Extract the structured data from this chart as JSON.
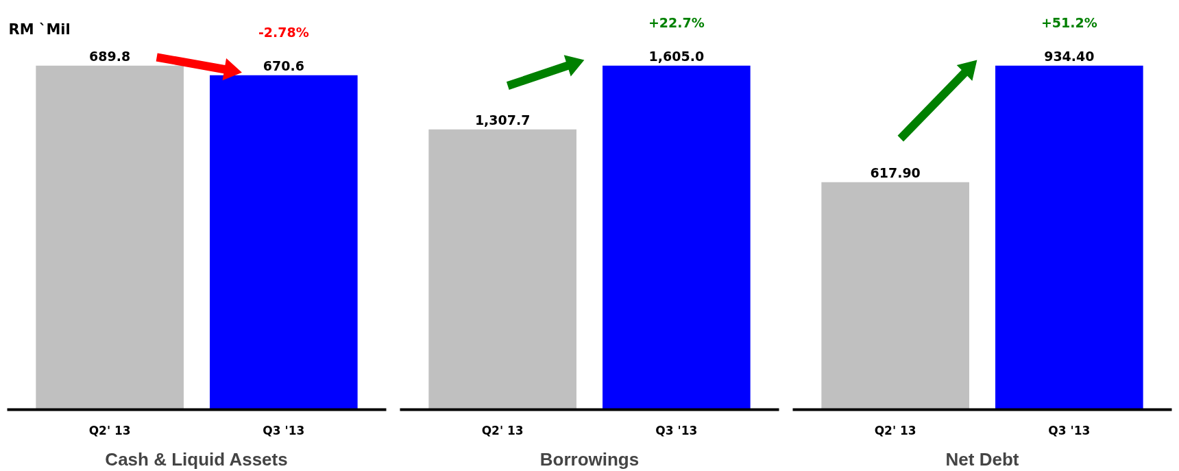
{
  "chart_data": [
    {
      "type": "bar",
      "categories": [
        "Q2' 13",
        "Q3 '13"
      ],
      "values": [
        689.8,
        670.6
      ],
      "colors": [
        "#c0c0c0",
        "#0000ff"
      ],
      "value_labels": [
        "689.8",
        "670.6"
      ],
      "xlabel": "Cash & Liquid Assets",
      "tick_labels": "x",
      "annotations": [
        "RM `Mil",
        {
          "text": "-2.78%",
          "x": "Q3 '13",
          "y": 670.6
        }
      ]
    },
    {
      "type": "bar",
      "categories": [
        "Q2' 13",
        "Q3 '13"
      ],
      "values": [
        1307.7,
        1605.0
      ],
      "colors": [
        "#c0c0c0",
        "#0000ff"
      ],
      "value_labels": [
        "1,307.7",
        "1,605.0"
      ],
      "xlabel": "Borrowings",
      "tick_labels": "x",
      "annotations": [
        {
          "text": "+22.7%",
          "x": "Q3 '13",
          "y": 1605.0
        }
      ]
    },
    {
      "type": "bar",
      "categories": [
        "Q2' 13",
        "Q3 '13"
      ],
      "values": [
        617.9,
        934.4
      ],
      "colors": [
        "#c0c0c0",
        "#0000ff"
      ],
      "value_labels": [
        "617.90",
        "934.40"
      ],
      "xlabel": "Net Debt",
      "tick_labels": "x",
      "annotations": [
        {
          "text": "+51.2%",
          "x": "Q3 '13",
          "y": 934.4
        }
      ]
    }
  ]
}
